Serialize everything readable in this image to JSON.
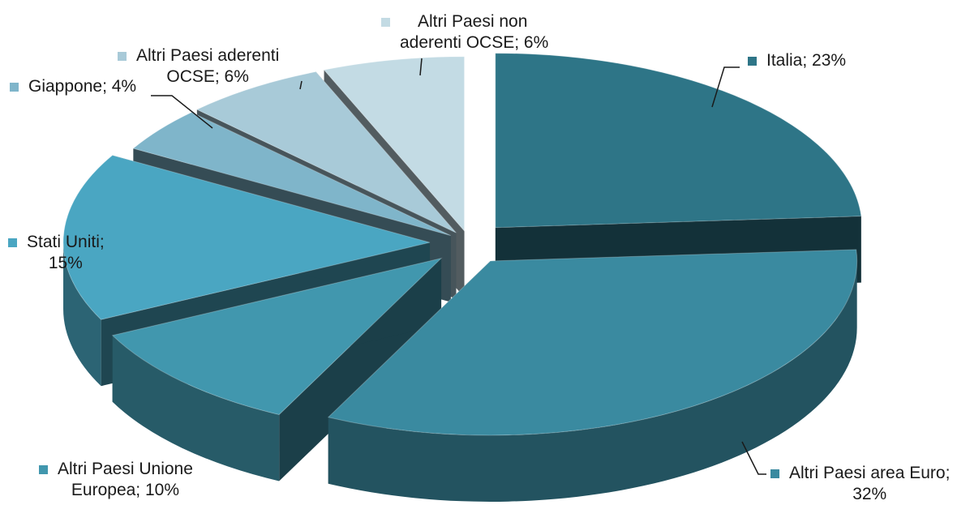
{
  "chart_data": {
    "type": "pie",
    "style": "3d-exploded",
    "legend": "none",
    "slices": [
      {
        "label": "Italia; 23%",
        "name": "Italia",
        "value": 23,
        "color": "#2e7587"
      },
      {
        "label": "Altri Paesi area Euro; 32%",
        "name": "Altri Paesi area Euro",
        "value": 32,
        "color": "#3a8aa0"
      },
      {
        "label": "Altri Paesi Unione Europea; 10%",
        "name": "Altri Paesi Unione Europea",
        "value": 10,
        "color": "#4197ae"
      },
      {
        "label": "Stati Uniti; 15%",
        "name": "Stati Uniti",
        "value": 15,
        "color": "#4aa6c2"
      },
      {
        "label": "Giappone; 4%",
        "name": "Giappone",
        "value": 4,
        "color": "#7fb5ca"
      },
      {
        "label": "Altri Paesi aderenti OCSE; 6%",
        "name": "Altri Paesi aderenti OCSE",
        "value": 6,
        "color": "#a8cad8"
      },
      {
        "label": "Altri Paesi non aderenti OCSE; 6%",
        "name": "Altri Paesi non aderenti OCSE",
        "value": 6,
        "color": "#c3dbe4"
      }
    ]
  },
  "labels": {
    "italia": {
      "line1": "Italia; 23%",
      "line2": ""
    },
    "euro": {
      "line1": "Altri Paesi area Euro;",
      "line2": "32%"
    },
    "ue": {
      "line1": "Altri Paesi Unione",
      "line2": "Europea; 10%"
    },
    "usa": {
      "line1": "Stati Uniti;",
      "line2": "15%"
    },
    "giappone": {
      "line1": "Giappone; 4%",
      "line2": ""
    },
    "ocse": {
      "line1": "Altri Paesi aderenti",
      "line2": "OCSE; 6%"
    },
    "nonocse": {
      "line1": "Altri Paesi non",
      "line2": "aderenti OCSE; 6%"
    }
  }
}
